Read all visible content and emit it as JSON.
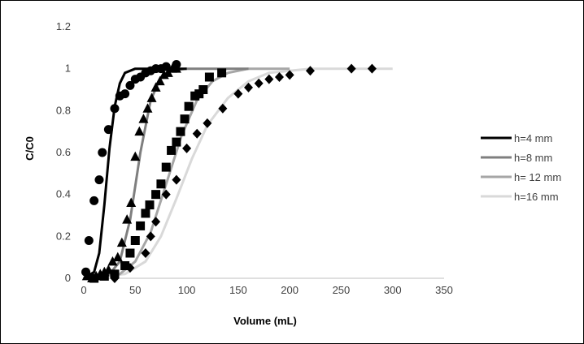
{
  "chart_data": {
    "type": "scatter",
    "title": "",
    "xlabel": "Volume (mL)",
    "ylabel": "C/C0",
    "xlim": [
      0,
      350
    ],
    "ylim": [
      0,
      1.2
    ],
    "x_ticks": [
      "0",
      "50",
      "100",
      "150",
      "200",
      "250",
      "300",
      "350"
    ],
    "y_ticks": [
      "0",
      "0.2",
      "0.4",
      "0.6",
      "0.8",
      "1",
      "1.2"
    ],
    "grid": false,
    "legend_position": "right",
    "series": [
      {
        "name": "h=4 mm",
        "color": "#000000",
        "marker": "circle",
        "points": [
          [
            2,
            0.03
          ],
          [
            5,
            0.18
          ],
          [
            10,
            0.37
          ],
          [
            15,
            0.47
          ],
          [
            18,
            0.6
          ],
          [
            24,
            0.71
          ],
          [
            30,
            0.81
          ],
          [
            35,
            0.87
          ],
          [
            40,
            0.88
          ],
          [
            45,
            0.92
          ],
          [
            50,
            0.95
          ],
          [
            55,
            0.96
          ],
          [
            60,
            0.98
          ],
          [
            65,
            0.99
          ],
          [
            70,
            1.0
          ],
          [
            75,
            1.0
          ],
          [
            80,
            1.01
          ],
          [
            90,
            1.02
          ]
        ],
        "curve": [
          [
            0,
            0
          ],
          [
            10,
            0.03
          ],
          [
            15,
            0.12
          ],
          [
            20,
            0.35
          ],
          [
            25,
            0.62
          ],
          [
            30,
            0.82
          ],
          [
            35,
            0.93
          ],
          [
            40,
            0.98
          ],
          [
            50,
            1.0
          ],
          [
            100,
            1.0
          ]
        ]
      },
      {
        "name": "h=8 mm",
        "color": "#7f7f7f",
        "marker": "triangle",
        "points": [
          [
            3,
            0.01
          ],
          [
            8,
            0.0
          ],
          [
            12,
            0.01
          ],
          [
            16,
            0.02
          ],
          [
            20,
            0.03
          ],
          [
            24,
            0.04
          ],
          [
            28,
            0.08
          ],
          [
            33,
            0.1
          ],
          [
            37,
            0.17
          ],
          [
            42,
            0.28
          ],
          [
            46,
            0.36
          ],
          [
            50,
            0.58
          ],
          [
            54,
            0.7
          ],
          [
            58,
            0.76
          ],
          [
            62,
            0.81
          ],
          [
            66,
            0.86
          ],
          [
            70,
            0.91
          ],
          [
            74,
            0.94
          ],
          [
            78,
            0.97
          ],
          [
            82,
            0.98
          ],
          [
            86,
            1.0
          ],
          [
            90,
            1.0
          ]
        ],
        "curve": [
          [
            0,
            0
          ],
          [
            25,
            0.02
          ],
          [
            35,
            0.08
          ],
          [
            45,
            0.28
          ],
          [
            55,
            0.6
          ],
          [
            65,
            0.85
          ],
          [
            75,
            0.96
          ],
          [
            85,
            0.99
          ],
          [
            100,
            1.0
          ],
          [
            160,
            1.0
          ]
        ]
      },
      {
        "name": "h= 12 mm",
        "color": "#a6a6a6",
        "marker": "square",
        "points": [
          [
            10,
            0.0
          ],
          [
            20,
            0.01
          ],
          [
            30,
            0.02
          ],
          [
            40,
            0.06
          ],
          [
            45,
            0.12
          ],
          [
            50,
            0.18
          ],
          [
            55,
            0.25
          ],
          [
            60,
            0.31
          ],
          [
            64,
            0.35
          ],
          [
            70,
            0.4
          ],
          [
            75,
            0.45
          ],
          [
            80,
            0.53
          ],
          [
            85,
            0.61
          ],
          [
            90,
            0.65
          ],
          [
            94,
            0.7
          ],
          [
            98,
            0.76
          ],
          [
            102,
            0.82
          ],
          [
            108,
            0.87
          ],
          [
            112,
            0.88
          ],
          [
            116,
            0.9
          ],
          [
            122,
            0.96
          ],
          [
            134,
            0.98
          ]
        ],
        "curve": [
          [
            0,
            0
          ],
          [
            35,
            0.02
          ],
          [
            50,
            0.08
          ],
          [
            65,
            0.22
          ],
          [
            80,
            0.45
          ],
          [
            95,
            0.68
          ],
          [
            110,
            0.85
          ],
          [
            125,
            0.94
          ],
          [
            140,
            0.98
          ],
          [
            160,
            1.0
          ],
          [
            200,
            1.0
          ]
        ]
      },
      {
        "name": "h=16 mm",
        "color": "#d9d9d9",
        "marker": "diamond",
        "points": [
          [
            30,
            0.0
          ],
          [
            45,
            0.05
          ],
          [
            60,
            0.12
          ],
          [
            65,
            0.2
          ],
          [
            70,
            0.27
          ],
          [
            80,
            0.4
          ],
          [
            90,
            0.47
          ],
          [
            100,
            0.62
          ],
          [
            110,
            0.69
          ],
          [
            120,
            0.74
          ],
          [
            135,
            0.81
          ],
          [
            150,
            0.88
          ],
          [
            160,
            0.91
          ],
          [
            170,
            0.93
          ],
          [
            180,
            0.95
          ],
          [
            190,
            0.96
          ],
          [
            200,
            0.97
          ],
          [
            220,
            0.99
          ],
          [
            260,
            1.0
          ],
          [
            280,
            1.0
          ]
        ],
        "curve": [
          [
            0,
            0
          ],
          [
            40,
            0.02
          ],
          [
            60,
            0.08
          ],
          [
            75,
            0.2
          ],
          [
            90,
            0.38
          ],
          [
            105,
            0.57
          ],
          [
            120,
            0.73
          ],
          [
            140,
            0.86
          ],
          [
            160,
            0.94
          ],
          [
            180,
            0.98
          ],
          [
            200,
            0.99
          ],
          [
            220,
            1.0
          ],
          [
            300,
            1.0
          ]
        ]
      }
    ]
  }
}
